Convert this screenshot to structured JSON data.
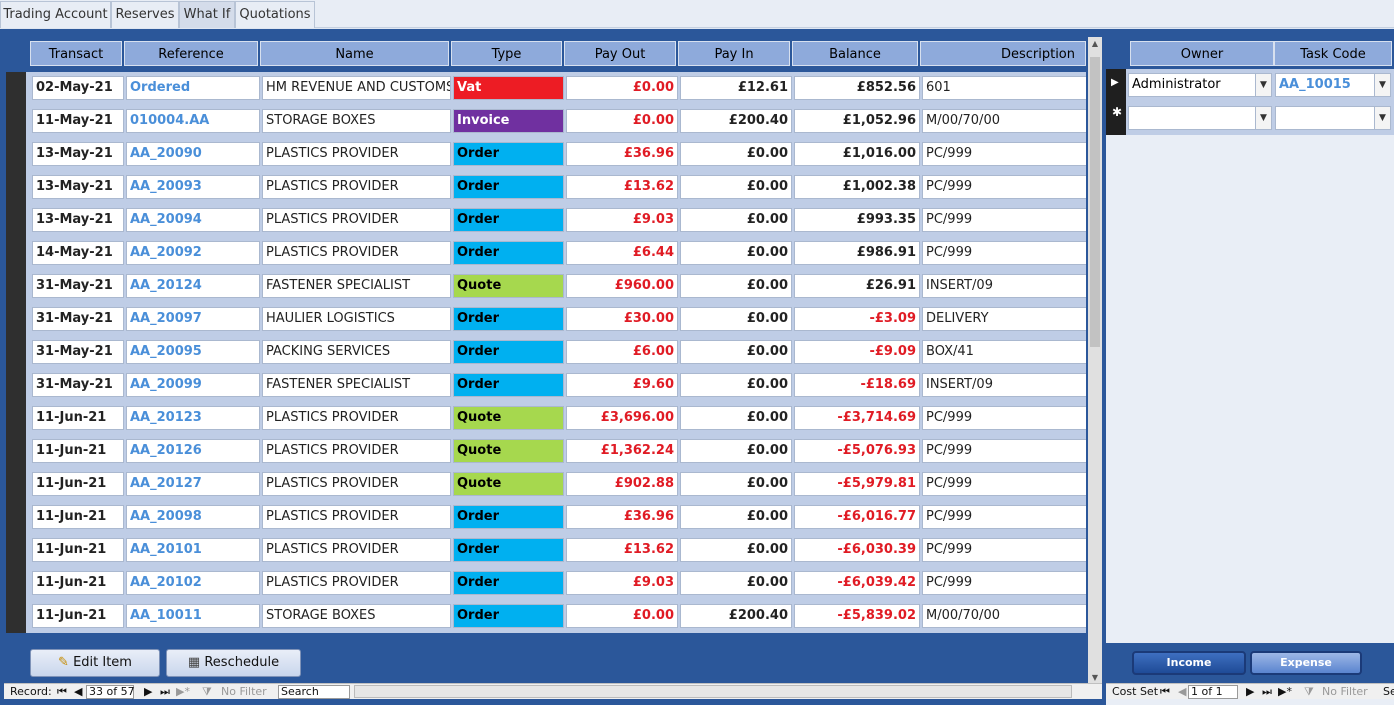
{
  "tabs": [
    {
      "label": "Trading Account"
    },
    {
      "label": "Reserves"
    },
    {
      "label": "What If"
    },
    {
      "label": "Quotations"
    }
  ],
  "grid": {
    "columns": [
      "Transact",
      "Reference",
      "Name",
      "Type",
      "Pay Out",
      "Pay In",
      "Balance",
      "Description"
    ],
    "rows": [
      {
        "date": "02-May-21",
        "ref": "Ordered",
        "name": "HM REVENUE AND CUSTOMS",
        "type": "Vat",
        "payout": "£0.00",
        "payin": "£12.61",
        "balance": "£852.56",
        "desc": "601",
        "current": true
      },
      {
        "date": "11-May-21",
        "ref": "010004.AA",
        "name": "STORAGE BOXES",
        "type": "Invoice",
        "payout": "£0.00",
        "payin": "£200.40",
        "balance": "£1,052.96",
        "desc": "M/00/70/00"
      },
      {
        "date": "13-May-21",
        "ref": "AA_20090",
        "name": "PLASTICS PROVIDER",
        "type": "Order",
        "payout": "£36.96",
        "payin": "£0.00",
        "balance": "£1,016.00",
        "desc": "PC/999"
      },
      {
        "date": "13-May-21",
        "ref": "AA_20093",
        "name": "PLASTICS PROVIDER",
        "type": "Order",
        "payout": "£13.62",
        "payin": "£0.00",
        "balance": "£1,002.38",
        "desc": "PC/999"
      },
      {
        "date": "13-May-21",
        "ref": "AA_20094",
        "name": "PLASTICS PROVIDER",
        "type": "Order",
        "payout": "£9.03",
        "payin": "£0.00",
        "balance": "£993.35",
        "desc": "PC/999"
      },
      {
        "date": "14-May-21",
        "ref": "AA_20092",
        "name": "PLASTICS PROVIDER",
        "type": "Order",
        "payout": "£6.44",
        "payin": "£0.00",
        "balance": "£986.91",
        "desc": "PC/999"
      },
      {
        "date": "31-May-21",
        "ref": "AA_20124",
        "name": "FASTENER SPECIALIST",
        "type": "Quote",
        "payout": "£960.00",
        "payin": "£0.00",
        "balance": "£26.91",
        "desc": "INSERT/09"
      },
      {
        "date": "31-May-21",
        "ref": "AA_20097",
        "name": "HAULIER LOGISTICS",
        "type": "Order",
        "payout": "£30.00",
        "payin": "£0.00",
        "balance": "-£3.09",
        "desc": "DELIVERY"
      },
      {
        "date": "31-May-21",
        "ref": "AA_20095",
        "name": "PACKING SERVICES",
        "type": "Order",
        "payout": "£6.00",
        "payin": "£0.00",
        "balance": "-£9.09",
        "desc": "BOX/41"
      },
      {
        "date": "31-May-21",
        "ref": "AA_20099",
        "name": "FASTENER SPECIALIST",
        "type": "Order",
        "payout": "£9.60",
        "payin": "£0.00",
        "balance": "-£18.69",
        "desc": "INSERT/09"
      },
      {
        "date": "11-Jun-21",
        "ref": "AA_20123",
        "name": "PLASTICS PROVIDER",
        "type": "Quote",
        "payout": "£3,696.00",
        "payin": "£0.00",
        "balance": "-£3,714.69",
        "desc": "PC/999"
      },
      {
        "date": "11-Jun-21",
        "ref": "AA_20126",
        "name": "PLASTICS PROVIDER",
        "type": "Quote",
        "payout": "£1,362.24",
        "payin": "£0.00",
        "balance": "-£5,076.93",
        "desc": "PC/999"
      },
      {
        "date": "11-Jun-21",
        "ref": "AA_20127",
        "name": "PLASTICS PROVIDER",
        "type": "Quote",
        "payout": "£902.88",
        "payin": "£0.00",
        "balance": "-£5,979.81",
        "desc": "PC/999"
      },
      {
        "date": "11-Jun-21",
        "ref": "AA_20098",
        "name": "PLASTICS PROVIDER",
        "type": "Order",
        "payout": "£36.96",
        "payin": "£0.00",
        "balance": "-£6,016.77",
        "desc": "PC/999"
      },
      {
        "date": "11-Jun-21",
        "ref": "AA_20101",
        "name": "PLASTICS PROVIDER",
        "type": "Order",
        "payout": "£13.62",
        "payin": "£0.00",
        "balance": "-£6,030.39",
        "desc": "PC/999"
      },
      {
        "date": "11-Jun-21",
        "ref": "AA_20102",
        "name": "PLASTICS PROVIDER",
        "type": "Order",
        "payout": "£9.03",
        "payin": "£0.00",
        "balance": "-£6,039.42",
        "desc": "PC/999"
      },
      {
        "date": "11-Jun-21",
        "ref": "AA_10011",
        "name": "STORAGE BOXES",
        "type": "Order",
        "payout": "£0.00",
        "payin": "£200.40",
        "balance": "-£5,839.02",
        "desc": "M/00/70/00"
      }
    ]
  },
  "type_colors": {
    "Vat": "#ed1c24",
    "Invoice": "#7030a0",
    "Order": "#00b0f0",
    "Quote": "#a6d84e"
  },
  "type_text_colors": {
    "Vat": "#ffffff",
    "Invoice": "#ffffff",
    "Order": "#000000",
    "Quote": "#000000"
  },
  "buttons": {
    "edit": "Edit Item",
    "reschedule": "Reschedule"
  },
  "nav_left": {
    "record_label": "Record:",
    "position": "33 of 57",
    "filter": "No Filter",
    "search": "Search"
  },
  "right": {
    "columns": [
      "Owner",
      "Task Code"
    ],
    "rows": [
      {
        "owner": "Administrator",
        "task": "AA_10015"
      },
      {
        "owner": "",
        "task": ""
      }
    ],
    "income": "Income",
    "expense": "Expense"
  },
  "nav_right": {
    "record_label": "Cost Set",
    "position": "1 of 1",
    "filter": "No Filter",
    "search": "Se"
  }
}
